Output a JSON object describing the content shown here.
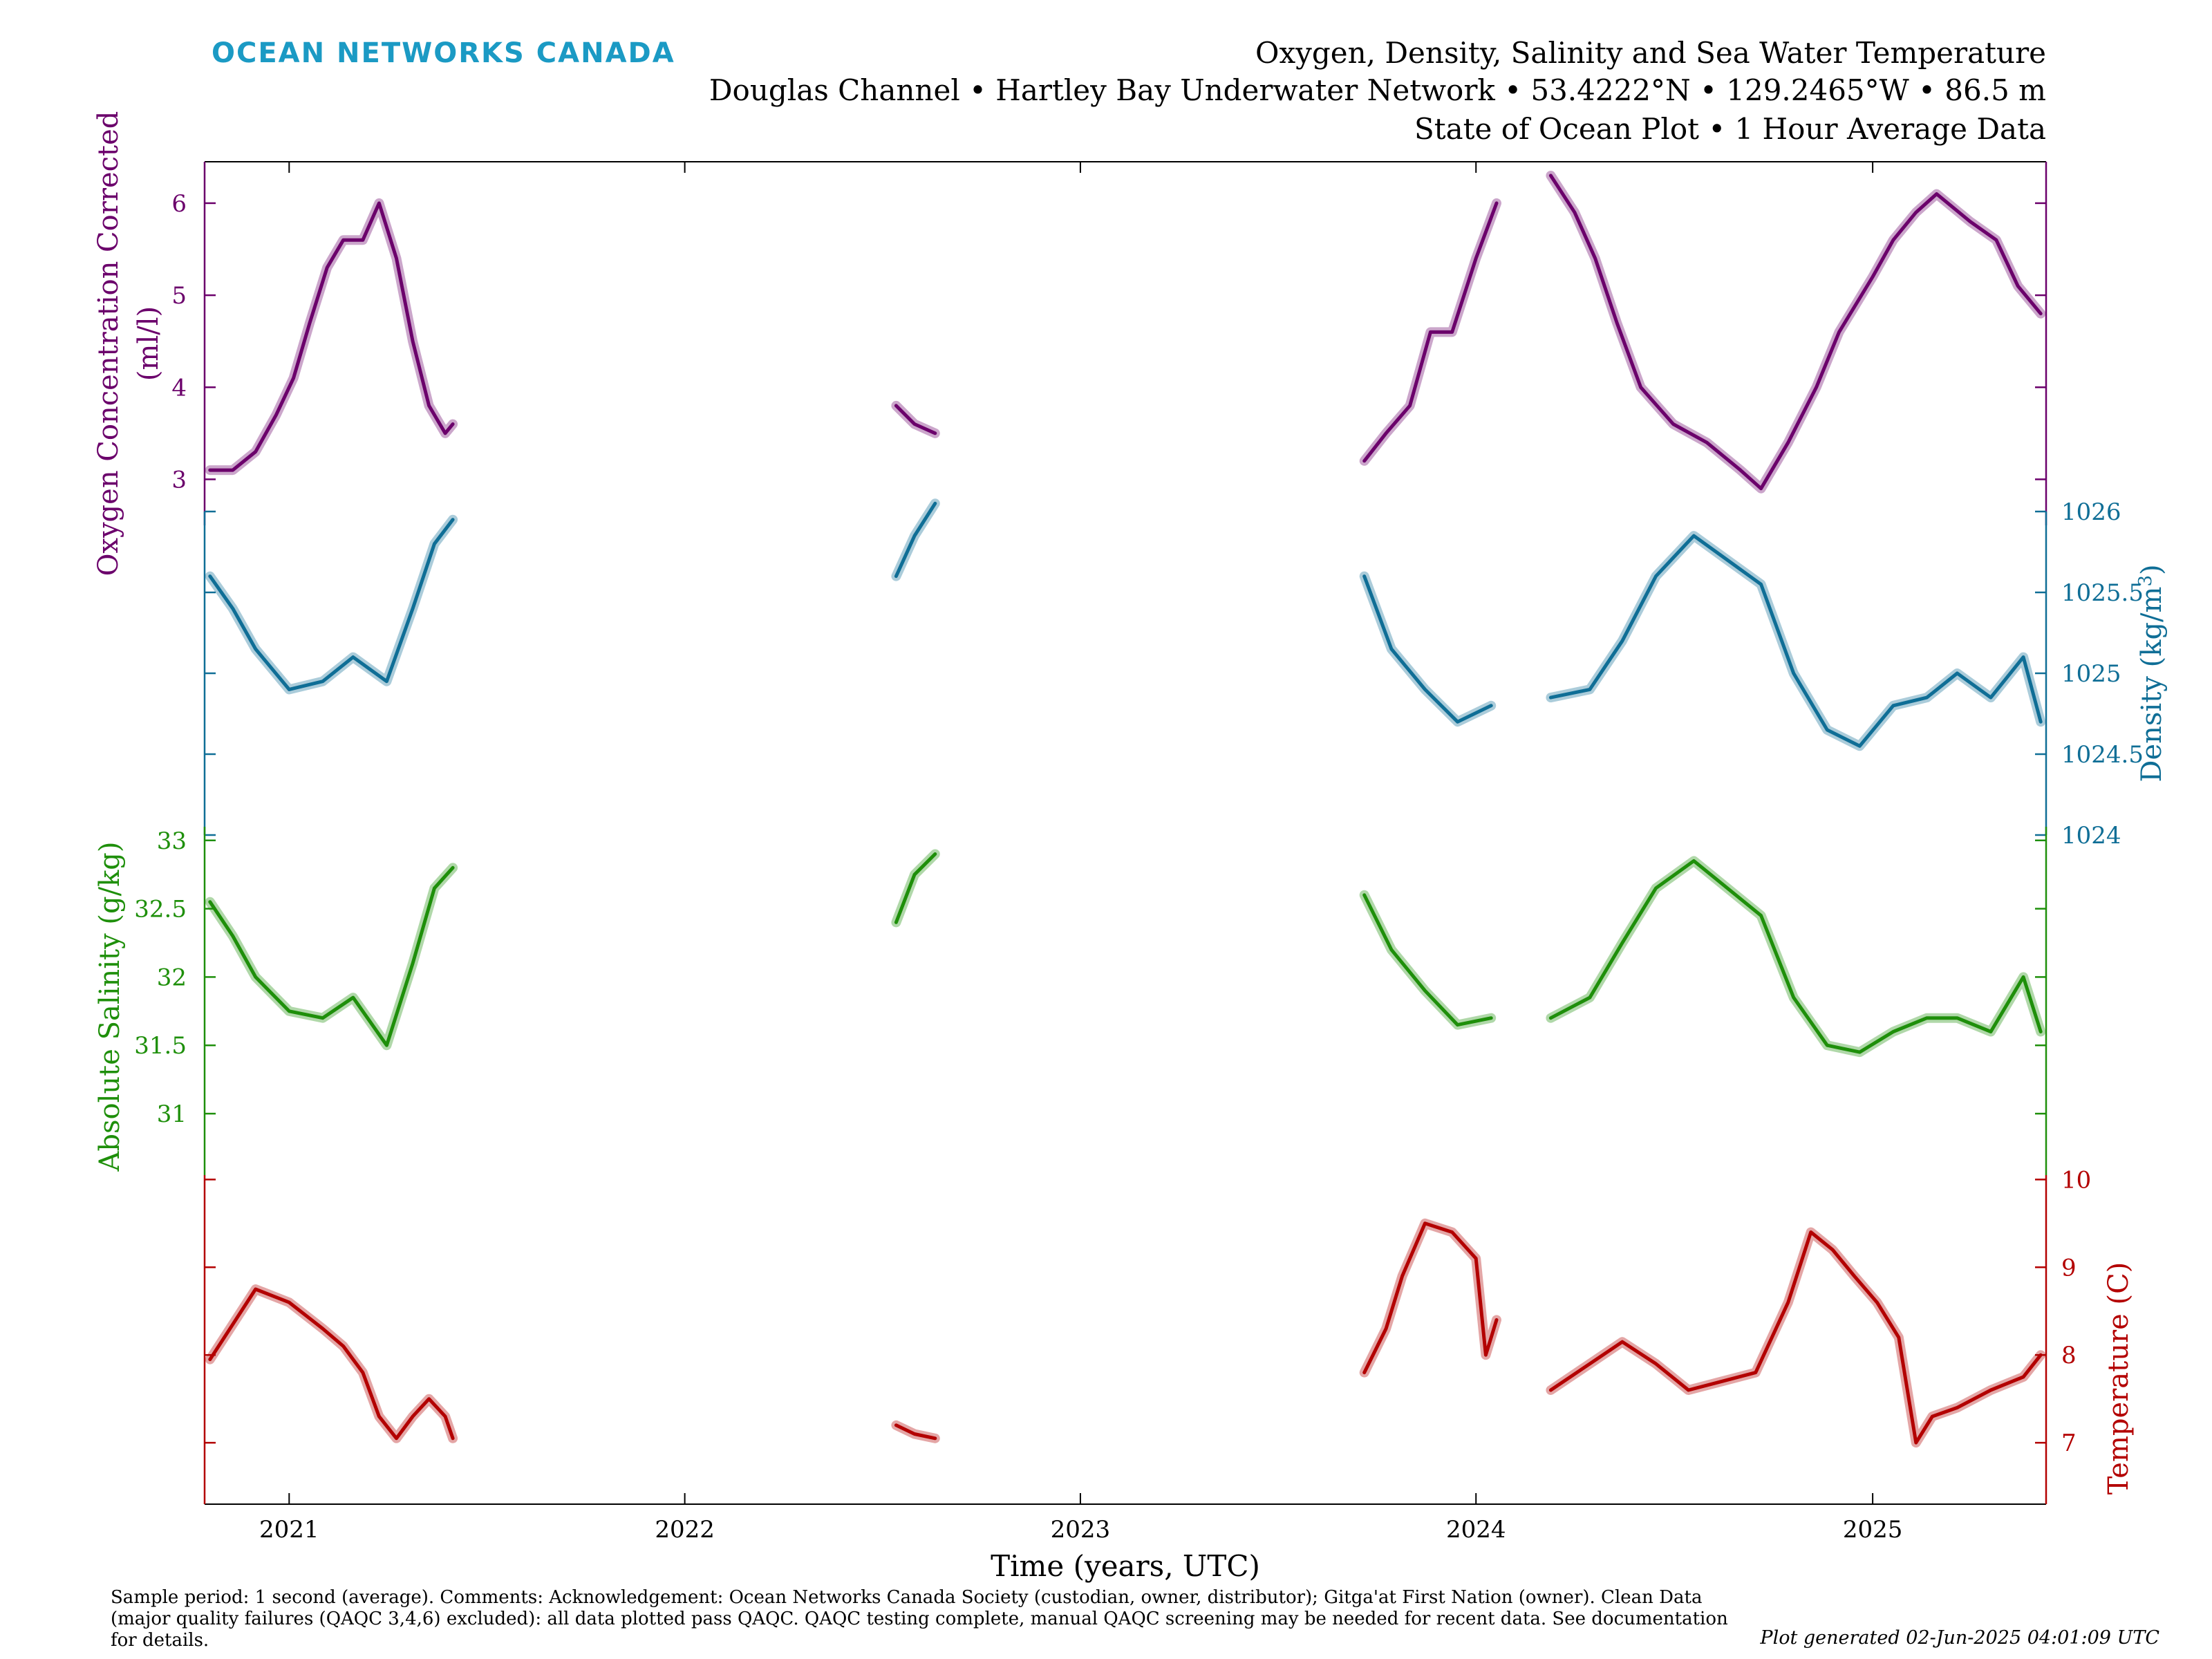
{
  "header": {
    "brand": "OCEAN NETWORKS CANADA",
    "title_line1": "Oxygen, Density, Salinity and Sea Water Temperature",
    "title_line2": "Douglas Channel • Hartley Bay Underwater Network • 53.4222°N • 129.2465°W • 86.5 m",
    "title_line3": "State of Ocean Plot • 1 Hour Average Data"
  },
  "footer": {
    "note": "Sample period: 1 second (average). Comments: Acknowledgement: Ocean Networks Canada Society (custodian, owner, distributor); Gitga'at First Nation (owner). Clean Data (major quality failures (QAQC 3,4,6) excluded): all data plotted pass QAQC. QAQC testing complete, manual QAQC screening may be needed for recent data. See documentation for details.",
    "generated": "Plot generated 02-Jun-2025 04:01:09 UTC"
  },
  "colors": {
    "oxygen": "#6b006b",
    "density": "#0f6e96",
    "salinity": "#1e8f0a",
    "temperature": "#b30000",
    "brand": "#1b9ac4"
  },
  "chart_data": {
    "type": "line",
    "xlabel": "Time (years, UTC)",
    "xlim": [
      "2020-10-15",
      "2025-06-10"
    ],
    "x_ticks": [
      "2021",
      "2022",
      "2023",
      "2024",
      "2025"
    ],
    "series": [
      {
        "key": "oxygen",
        "ylabel_line1": "Oxygen Concentration Corrected",
        "ylabel_line2": "(ml/l)",
        "ylim": [
          2.5,
          6.45
        ],
        "yticks": [
          3,
          4,
          5,
          6
        ],
        "axis_side": "left",
        "segments": [
          [
            [
              "2020-10-20",
              3.1
            ],
            [
              "2020-11-10",
              3.1
            ],
            [
              "2020-12-01",
              3.3
            ],
            [
              "2020-12-20",
              3.7
            ],
            [
              "2021-01-05",
              4.1
            ],
            [
              "2021-01-20",
              4.7
            ],
            [
              "2021-02-05",
              5.3
            ],
            [
              "2021-02-20",
              5.6
            ],
            [
              "2021-03-10",
              5.6
            ],
            [
              "2021-03-25",
              6.0
            ],
            [
              "2021-04-10",
              5.4
            ],
            [
              "2021-04-25",
              4.5
            ],
            [
              "2021-05-10",
              3.8
            ],
            [
              "2021-05-25",
              3.5
            ],
            [
              "2021-06-01",
              3.6
            ]
          ],
          [
            [
              "2022-07-15",
              3.8
            ],
            [
              "2022-08-01",
              3.6
            ],
            [
              "2022-08-20",
              3.5
            ]
          ],
          [
            [
              "2023-09-20",
              3.2
            ],
            [
              "2023-10-10",
              3.5
            ],
            [
              "2023-11-01",
              3.8
            ],
            [
              "2023-11-20",
              4.6
            ],
            [
              "2023-12-10",
              4.6
            ],
            [
              "2024-01-01",
              5.4
            ],
            [
              "2024-01-20",
              6.0
            ]
          ],
          [
            [
              "2024-03-10",
              6.3
            ],
            [
              "2024-04-01",
              5.9
            ],
            [
              "2024-04-20",
              5.4
            ],
            [
              "2024-05-10",
              4.7
            ],
            [
              "2024-06-01",
              4.0
            ],
            [
              "2024-07-01",
              3.6
            ],
            [
              "2024-08-01",
              3.4
            ],
            [
              "2024-09-01",
              3.1
            ],
            [
              "2024-09-20",
              2.9
            ],
            [
              "2024-10-15",
              3.4
            ],
            [
              "2024-11-10",
              4.0
            ],
            [
              "2024-12-01",
              4.6
            ],
            [
              "2025-01-01",
              5.2
            ],
            [
              "2025-01-20",
              5.6
            ],
            [
              "2025-02-10",
              5.9
            ],
            [
              "2025-03-01",
              6.1
            ],
            [
              "2025-04-01",
              5.8
            ],
            [
              "2025-04-25",
              5.6
            ],
            [
              "2025-05-15",
              5.1
            ],
            [
              "2025-06-05",
              4.8
            ]
          ]
        ]
      },
      {
        "key": "density",
        "ylabel": "Density (kg/m",
        "ylabel_sup": "3",
        "ylabel_end": ")",
        "ylim": [
          1024,
          1026
        ],
        "yticks": [
          1024,
          1024.5,
          1025,
          1025.5,
          1026
        ],
        "ytick_labels": [
          "1024",
          "1024.5",
          "1025",
          "1025.5",
          "1026"
        ],
        "axis_side": "right",
        "segments": [
          [
            [
              "2020-10-20",
              1025.6
            ],
            [
              "2020-11-10",
              1025.4
            ],
            [
              "2020-12-01",
              1025.15
            ],
            [
              "2021-01-01",
              1024.9
            ],
            [
              "2021-02-01",
              1024.95
            ],
            [
              "2021-03-01",
              1025.1
            ],
            [
              "2021-04-01",
              1024.95
            ],
            [
              "2021-04-25",
              1025.4
            ],
            [
              "2021-05-15",
              1025.8
            ],
            [
              "2021-06-01",
              1025.95
            ]
          ],
          [
            [
              "2022-07-15",
              1025.6
            ],
            [
              "2022-08-01",
              1025.85
            ],
            [
              "2022-08-20",
              1026.05
            ]
          ],
          [
            [
              "2023-09-20",
              1025.6
            ],
            [
              "2023-10-15",
              1025.15
            ],
            [
              "2023-11-15",
              1024.9
            ],
            [
              "2023-12-15",
              1024.7
            ],
            [
              "2024-01-15",
              1024.8
            ]
          ],
          [
            [
              "2024-03-10",
              1024.85
            ],
            [
              "2024-04-15",
              1024.9
            ],
            [
              "2024-05-15",
              1025.2
            ],
            [
              "2024-06-15",
              1025.6
            ],
            [
              "2024-07-20",
              1025.85
            ],
            [
              "2024-08-20",
              1025.7
            ],
            [
              "2024-09-20",
              1025.55
            ],
            [
              "2024-10-20",
              1025.0
            ],
            [
              "2024-11-20",
              1024.65
            ],
            [
              "2024-12-20",
              1024.55
            ],
            [
              "2025-01-20",
              1024.8
            ],
            [
              "2025-02-20",
              1024.85
            ],
            [
              "2025-03-20",
              1025.0
            ],
            [
              "2025-04-20",
              1024.85
            ],
            [
              "2025-05-20",
              1025.1
            ],
            [
              "2025-06-05",
              1024.7
            ]
          ]
        ]
      },
      {
        "key": "salinity",
        "ylabel": "Absolute Salinity (g/kg)",
        "ylim": [
          30.55,
          33.1
        ],
        "yticks": [
          31,
          31.5,
          32,
          32.5,
          33
        ],
        "ytick_labels": [
          "31",
          "31.5",
          "32",
          "32.5",
          "33"
        ],
        "axis_side": "left",
        "segments": [
          [
            [
              "2020-10-20",
              32.55
            ],
            [
              "2020-11-10",
              32.3
            ],
            [
              "2020-12-01",
              32.0
            ],
            [
              "2021-01-01",
              31.75
            ],
            [
              "2021-02-01",
              31.7
            ],
            [
              "2021-03-01",
              31.85
            ],
            [
              "2021-04-01",
              31.5
            ],
            [
              "2021-04-25",
              32.1
            ],
            [
              "2021-05-15",
              32.65
            ],
            [
              "2021-06-01",
              32.8
            ]
          ],
          [
            [
              "2022-07-15",
              32.4
            ],
            [
              "2022-08-01",
              32.75
            ],
            [
              "2022-08-20",
              32.9
            ]
          ],
          [
            [
              "2023-09-20",
              32.6
            ],
            [
              "2023-10-15",
              32.2
            ],
            [
              "2023-11-15",
              31.9
            ],
            [
              "2023-12-15",
              31.65
            ],
            [
              "2024-01-15",
              31.7
            ]
          ],
          [
            [
              "2024-03-10",
              31.7
            ],
            [
              "2024-04-15",
              31.85
            ],
            [
              "2024-05-15",
              32.25
            ],
            [
              "2024-06-15",
              32.65
            ],
            [
              "2024-07-20",
              32.85
            ],
            [
              "2024-08-20",
              32.65
            ],
            [
              "2024-09-20",
              32.45
            ],
            [
              "2024-10-20",
              31.85
            ],
            [
              "2024-11-20",
              31.5
            ],
            [
              "2024-12-20",
              31.45
            ],
            [
              "2025-01-20",
              31.6
            ],
            [
              "2025-02-20",
              31.7
            ],
            [
              "2025-03-20",
              31.7
            ],
            [
              "2025-04-20",
              31.6
            ],
            [
              "2025-05-20",
              32.0
            ],
            [
              "2025-06-05",
              31.6
            ]
          ]
        ]
      },
      {
        "key": "temperature",
        "ylabel": "Temperature (C)",
        "ylim": [
          6.3,
          10.05
        ],
        "yticks": [
          7,
          8,
          9,
          10
        ],
        "ytick_labels": [
          "7",
          "8",
          "9",
          "10"
        ],
        "axis_side": "right",
        "segments": [
          [
            [
              "2020-10-20",
              7.95
            ],
            [
              "2020-11-10",
              8.35
            ],
            [
              "2020-12-01",
              8.75
            ],
            [
              "2021-01-01",
              8.6
            ],
            [
              "2021-02-01",
              8.3
            ],
            [
              "2021-02-20",
              8.1
            ],
            [
              "2021-03-10",
              7.8
            ],
            [
              "2021-03-25",
              7.3
            ],
            [
              "2021-04-10",
              7.05
            ],
            [
              "2021-04-25",
              7.3
            ],
            [
              "2021-05-10",
              7.5
            ],
            [
              "2021-05-25",
              7.3
            ],
            [
              "2021-06-01",
              7.05
            ]
          ],
          [
            [
              "2022-07-15",
              7.2
            ],
            [
              "2022-08-01",
              7.1
            ],
            [
              "2022-08-20",
              7.05
            ]
          ],
          [
            [
              "2023-09-20",
              7.8
            ],
            [
              "2023-10-10",
              8.3
            ],
            [
              "2023-10-25",
              8.9
            ],
            [
              "2023-11-15",
              9.5
            ],
            [
              "2023-12-10",
              9.4
            ],
            [
              "2024-01-01",
              9.1
            ],
            [
              "2024-01-10",
              8.0
            ],
            [
              "2024-01-20",
              8.4
            ]
          ],
          [
            [
              "2024-03-10",
              7.6
            ],
            [
              "2024-04-15",
              7.9
            ],
            [
              "2024-05-15",
              8.15
            ],
            [
              "2024-06-15",
              7.9
            ],
            [
              "2024-07-15",
              7.6
            ],
            [
              "2024-08-15",
              7.7
            ],
            [
              "2024-09-15",
              7.8
            ],
            [
              "2024-10-15",
              8.6
            ],
            [
              "2024-11-05",
              9.4
            ],
            [
              "2024-11-25",
              9.2
            ],
            [
              "2024-12-15",
              8.9
            ],
            [
              "2025-01-05",
              8.6
            ],
            [
              "2025-01-25",
              8.2
            ],
            [
              "2025-02-10",
              7.0
            ],
            [
              "2025-02-25",
              7.3
            ],
            [
              "2025-03-20",
              7.4
            ],
            [
              "2025-04-20",
              7.6
            ],
            [
              "2025-05-20",
              7.75
            ],
            [
              "2025-06-05",
              8.0
            ]
          ]
        ]
      }
    ]
  }
}
